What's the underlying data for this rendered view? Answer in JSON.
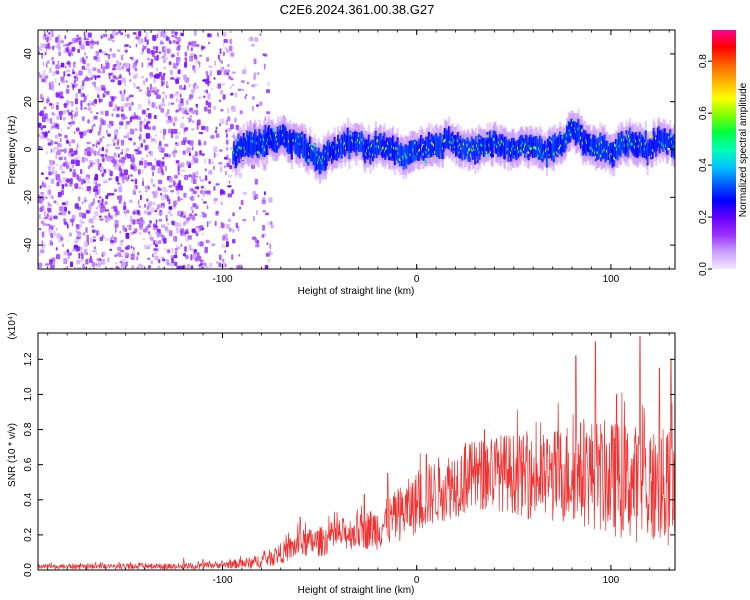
{
  "title": "C2E6.2024.361.00.38.G27",
  "chart_data": [
    {
      "type": "heatmap",
      "name": "spectrogram",
      "xlabel": "Height of straight line (km)",
      "ylabel": "Frequency (Hz)",
      "xlim": [
        -195,
        133
      ],
      "ylim": [
        -50,
        50
      ],
      "xticks": [
        -100,
        0,
        100
      ],
      "yticks": [
        -40,
        -20,
        0,
        20,
        40
      ],
      "colorbar": {
        "label": "Normalized spectral amplitude",
        "range": [
          0,
          0.92
        ],
        "ticks": [
          0.0,
          0.2,
          0.4,
          0.6,
          0.8
        ],
        "tick_labels": [
          "0.0",
          "0.2",
          "0.4",
          "0.6",
          "0.8"
        ],
        "colormap": [
          "#f2e6ff",
          "#c9a0ff",
          "#9b30ff",
          "#6600ff",
          "#0000ff",
          "#0060ff",
          "#00c8ff",
          "#00ffb0",
          "#00ff40",
          "#80ff00",
          "#ffff00",
          "#ffb000",
          "#ff6000",
          "#ff0000",
          "#ff0090"
        ]
      },
      "noise_region_x": [
        -195,
        -85
      ],
      "trace": {
        "x": [
          -95,
          -90,
          -80,
          -70,
          -65,
          -60,
          -55,
          -50,
          -45,
          -40,
          -35,
          -30,
          -25,
          -20,
          -15,
          -10,
          -5,
          0,
          5,
          10,
          15,
          20,
          25,
          30,
          35,
          40,
          45,
          50,
          55,
          60,
          65,
          70,
          75,
          80,
          85,
          90,
          95,
          100,
          105,
          110,
          115,
          120,
          125,
          133
        ],
        "y": [
          -2,
          1,
          3,
          5,
          4,
          2,
          -2,
          -6,
          -1,
          1,
          3,
          2,
          0,
          2,
          0,
          -1,
          -3,
          -1,
          1,
          0,
          4,
          2,
          0,
          1,
          2,
          3,
          1,
          0,
          2,
          1,
          -1,
          0,
          2,
          9,
          4,
          1,
          0,
          -1,
          2,
          3,
          1,
          0,
          4,
          1
        ],
        "halfwidth_hz": 5
      }
    },
    {
      "type": "line",
      "name": "snr",
      "xlabel": "Height of straight line (km)",
      "ylabel": "SNR (10 * v/v)",
      "multiplier": "(x10⁴)",
      "xlim": [
        -195,
        133
      ],
      "ylim": [
        0,
        1.35
      ],
      "xticks": [
        -100,
        0,
        100
      ],
      "yticks": [
        0.0,
        0.2,
        0.4,
        0.6,
        0.8,
        1.0,
        1.2
      ],
      "ytick_labels": [
        "0.0",
        "0.2",
        "0.4",
        "0.6",
        "0.8",
        "1.0",
        "1.2"
      ],
      "color": "#ee3333",
      "envelope": {
        "x": [
          -195,
          -120,
          -100,
          -85,
          -75,
          -65,
          -60,
          -50,
          -40,
          -30,
          -20,
          -15,
          -10,
          0,
          10,
          20,
          30,
          40,
          50,
          60,
          70,
          80,
          90,
          100,
          110,
          120,
          133
        ],
        "y": [
          0.02,
          0.02,
          0.03,
          0.04,
          0.07,
          0.12,
          0.15,
          0.16,
          0.2,
          0.22,
          0.24,
          0.27,
          0.31,
          0.38,
          0.45,
          0.5,
          0.53,
          0.56,
          0.55,
          0.52,
          0.53,
          0.56,
          0.55,
          0.52,
          0.5,
          0.48,
          0.45
        ]
      },
      "spread": {
        "x": [
          -195,
          -100,
          -80,
          -60,
          -30,
          0,
          20,
          40,
          60,
          80,
          100,
          133
        ],
        "y": [
          0.015,
          0.02,
          0.04,
          0.08,
          0.1,
          0.18,
          0.2,
          0.22,
          0.24,
          0.3,
          0.33,
          0.35
        ]
      },
      "peaks": [
        {
          "x": -120,
          "y": 0.07
        },
        {
          "x": -110,
          "y": 0.06
        },
        {
          "x": -60,
          "y": 0.3
        },
        {
          "x": -27,
          "y": 0.43
        },
        {
          "x": -15,
          "y": 0.55
        },
        {
          "x": 5,
          "y": 0.66
        },
        {
          "x": 25,
          "y": 0.72
        },
        {
          "x": 35,
          "y": 0.8
        },
        {
          "x": 82,
          "y": 1.22
        },
        {
          "x": 92,
          "y": 1.3
        },
        {
          "x": 103,
          "y": 1.0
        },
        {
          "x": 115,
          "y": 1.33
        },
        {
          "x": 125,
          "y": 1.15
        },
        {
          "x": 131,
          "y": 1.2
        }
      ]
    }
  ]
}
